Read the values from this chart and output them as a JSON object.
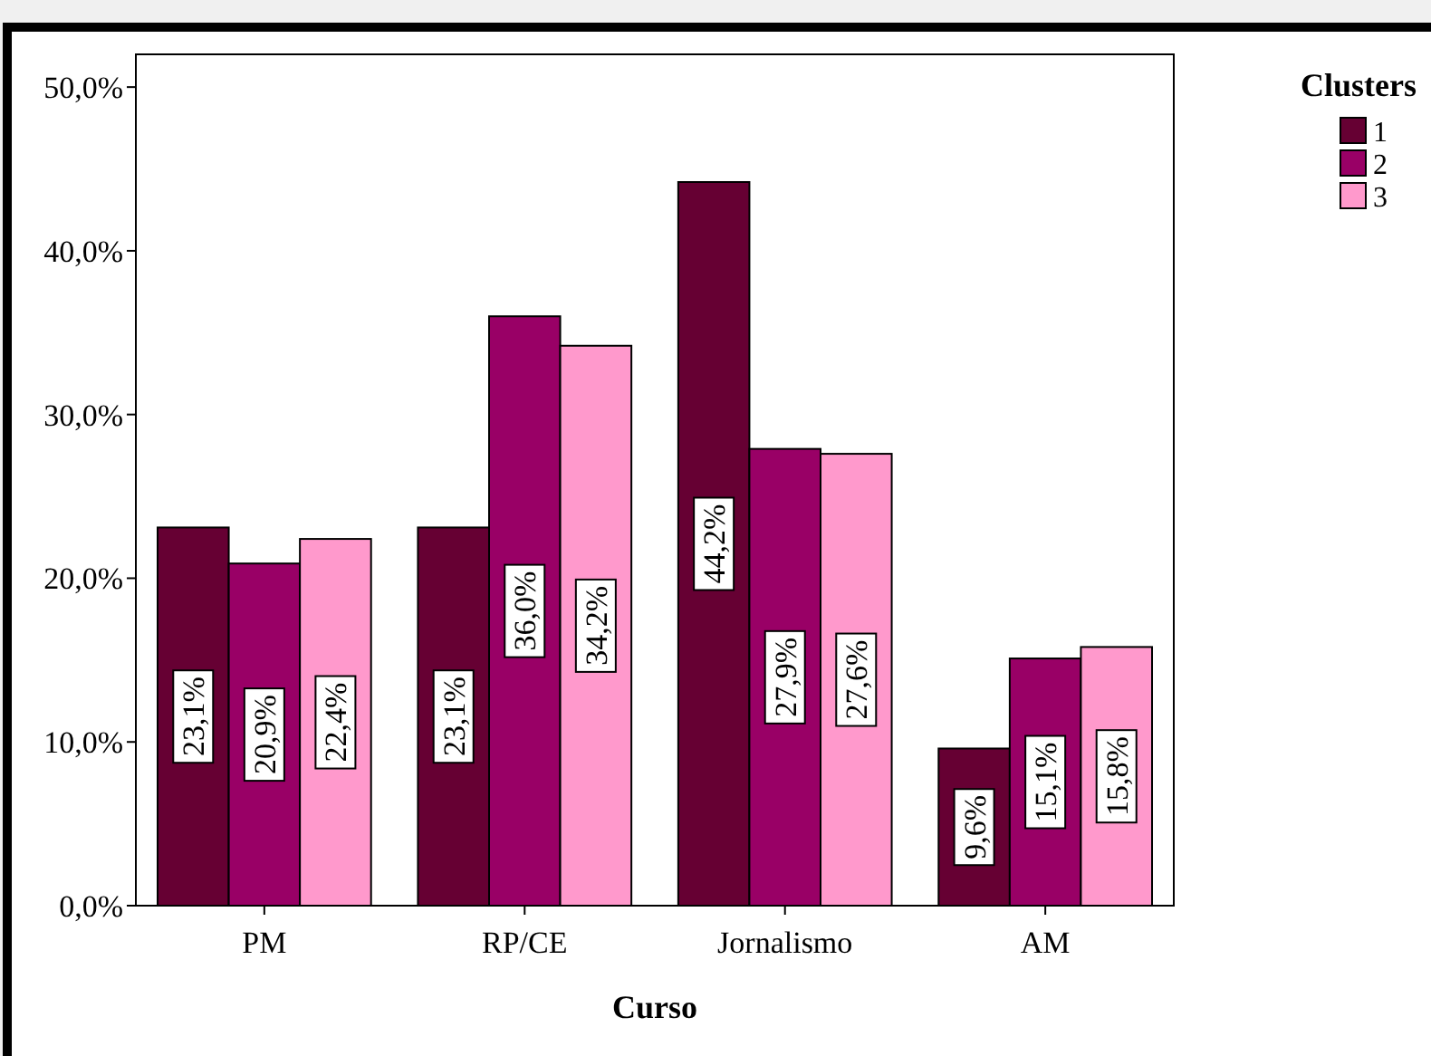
{
  "chart_data": {
    "type": "bar",
    "xlabel": "Curso",
    "legend_title": "Clusters",
    "legend": "top right",
    "grid": false,
    "categories": [
      "PM",
      "RP/CE",
      "Jornalismo",
      "AM"
    ],
    "ylim": [
      0,
      52
    ],
    "yticks": [
      {
        "value": 0,
        "label": "0,0%"
      },
      {
        "value": 10,
        "label": "10,0%"
      },
      {
        "value": 20,
        "label": "20,0%"
      },
      {
        "value": 30,
        "label": "30,0%"
      },
      {
        "value": 40,
        "label": "40,0%"
      },
      {
        "value": 50,
        "label": "50,0%"
      }
    ],
    "series": [
      {
        "name": "1",
        "color": "#660033",
        "values": [
          23.1,
          23.1,
          44.2,
          9.6
        ],
        "value_labels": [
          "23,1%",
          "23,1%",
          "44,2%",
          "9,6%"
        ]
      },
      {
        "name": "2",
        "color": "#990066",
        "values": [
          20.9,
          36.0,
          27.9,
          15.1
        ],
        "value_labels": [
          "20,9%",
          "36,0%",
          "27,9%",
          "15,1%"
        ]
      },
      {
        "name": "3",
        "color": "#ff99cc",
        "values": [
          22.4,
          34.2,
          27.6,
          15.8
        ],
        "value_labels": [
          "22,4%",
          "34,2%",
          "27,6%",
          "15,8%"
        ]
      }
    ]
  }
}
